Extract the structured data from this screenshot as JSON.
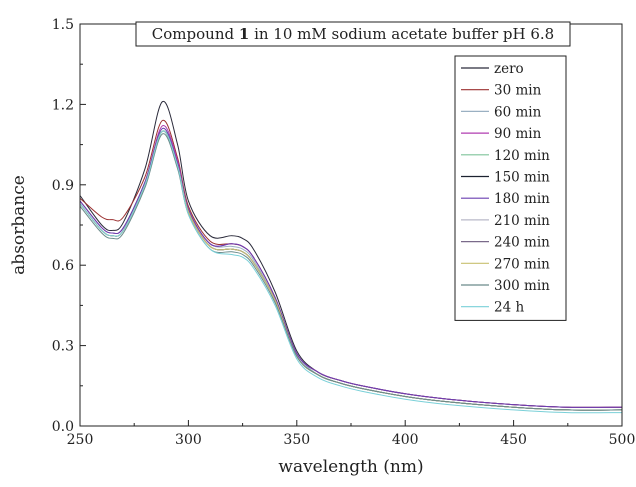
{
  "chart_data": {
    "type": "line",
    "title": {
      "prefix": "Compound ",
      "bold": "1",
      "suffix": " in 10 mM sodium acetate buffer pH 6.8"
    },
    "xlabel": "wavelength (nm)",
    "ylabel": "absorbance",
    "xlim": [
      250,
      500
    ],
    "ylim": [
      0.0,
      1.5
    ],
    "xticks": [
      "250",
      "300",
      "350",
      "400",
      "450",
      "500"
    ],
    "yticks": [
      "0.0",
      "0.3",
      "0.6",
      "0.9",
      "1.2",
      "1.5"
    ],
    "grid": false,
    "legend_position": "top-right",
    "x": [
      250,
      260,
      265,
      270,
      280,
      288,
      295,
      300,
      310,
      320,
      325,
      330,
      340,
      350,
      360,
      370,
      380,
      400,
      420,
      450,
      475,
      500
    ],
    "series": [
      {
        "name": "zero",
        "color": "#2a2a3a",
        "values": [
          0.86,
          0.75,
          0.73,
          0.76,
          0.96,
          1.21,
          1.05,
          0.84,
          0.71,
          0.71,
          0.7,
          0.66,
          0.5,
          0.28,
          0.2,
          0.17,
          0.15,
          0.12,
          0.1,
          0.08,
          0.07,
          0.07
        ]
      },
      {
        "name": "30 min",
        "color": "#9b3030",
        "values": [
          0.85,
          0.78,
          0.77,
          0.78,
          0.93,
          1.14,
          1.0,
          0.82,
          0.69,
          0.68,
          0.67,
          0.63,
          0.48,
          0.27,
          0.2,
          0.17,
          0.15,
          0.12,
          0.1,
          0.08,
          0.07,
          0.07
        ]
      },
      {
        "name": "60 min",
        "color": "#9ab0c2",
        "values": [
          0.84,
          0.74,
          0.72,
          0.74,
          0.91,
          1.11,
          0.98,
          0.81,
          0.68,
          0.67,
          0.66,
          0.62,
          0.47,
          0.27,
          0.19,
          0.16,
          0.14,
          0.11,
          0.09,
          0.07,
          0.06,
          0.06
        ]
      },
      {
        "name": "90 min",
        "color": "#b03db0",
        "values": [
          0.84,
          0.74,
          0.72,
          0.74,
          0.91,
          1.12,
          0.99,
          0.81,
          0.68,
          0.68,
          0.67,
          0.63,
          0.48,
          0.27,
          0.2,
          0.17,
          0.15,
          0.12,
          0.1,
          0.08,
          0.07,
          0.07
        ]
      },
      {
        "name": "120 min",
        "color": "#7fc49a",
        "values": [
          0.83,
          0.73,
          0.71,
          0.73,
          0.9,
          1.1,
          0.97,
          0.8,
          0.67,
          0.66,
          0.65,
          0.61,
          0.47,
          0.26,
          0.19,
          0.16,
          0.14,
          0.11,
          0.09,
          0.07,
          0.06,
          0.06
        ]
      },
      {
        "name": "150 min",
        "color": "#1c2230",
        "values": [
          0.83,
          0.73,
          0.71,
          0.73,
          0.9,
          1.1,
          0.97,
          0.8,
          0.67,
          0.66,
          0.65,
          0.61,
          0.47,
          0.26,
          0.19,
          0.16,
          0.14,
          0.11,
          0.09,
          0.07,
          0.06,
          0.06
        ]
      },
      {
        "name": "180 min",
        "color": "#6a3fb0",
        "values": [
          0.84,
          0.74,
          0.72,
          0.74,
          0.91,
          1.11,
          0.98,
          0.81,
          0.68,
          0.68,
          0.67,
          0.63,
          0.48,
          0.27,
          0.2,
          0.17,
          0.15,
          0.12,
          0.1,
          0.08,
          0.07,
          0.07
        ]
      },
      {
        "name": "210 min",
        "color": "#b8b8c8",
        "values": [
          0.83,
          0.73,
          0.71,
          0.73,
          0.9,
          1.1,
          0.97,
          0.8,
          0.67,
          0.66,
          0.65,
          0.61,
          0.47,
          0.26,
          0.19,
          0.16,
          0.14,
          0.11,
          0.09,
          0.07,
          0.06,
          0.06
        ]
      },
      {
        "name": "240 min",
        "color": "#7a6a8a",
        "values": [
          0.83,
          0.73,
          0.71,
          0.73,
          0.9,
          1.1,
          0.97,
          0.8,
          0.67,
          0.66,
          0.65,
          0.61,
          0.47,
          0.26,
          0.19,
          0.16,
          0.14,
          0.11,
          0.09,
          0.07,
          0.06,
          0.06
        ]
      },
      {
        "name": "270 min",
        "color": "#c8c070",
        "values": [
          0.83,
          0.73,
          0.71,
          0.73,
          0.9,
          1.1,
          0.97,
          0.8,
          0.67,
          0.66,
          0.65,
          0.61,
          0.47,
          0.26,
          0.19,
          0.16,
          0.14,
          0.11,
          0.09,
          0.07,
          0.06,
          0.06
        ]
      },
      {
        "name": "300 min",
        "color": "#6a8a8a",
        "values": [
          0.82,
          0.72,
          0.7,
          0.72,
          0.89,
          1.09,
          0.96,
          0.79,
          0.66,
          0.65,
          0.64,
          0.6,
          0.46,
          0.26,
          0.19,
          0.16,
          0.14,
          0.11,
          0.09,
          0.07,
          0.06,
          0.06
        ]
      },
      {
        "name": "24 h",
        "color": "#7ad0d8",
        "values": [
          0.83,
          0.73,
          0.71,
          0.73,
          0.9,
          1.1,
          0.97,
          0.79,
          0.66,
          0.64,
          0.63,
          0.59,
          0.45,
          0.25,
          0.18,
          0.15,
          0.13,
          0.1,
          0.08,
          0.06,
          0.05,
          0.05
        ]
      }
    ]
  }
}
